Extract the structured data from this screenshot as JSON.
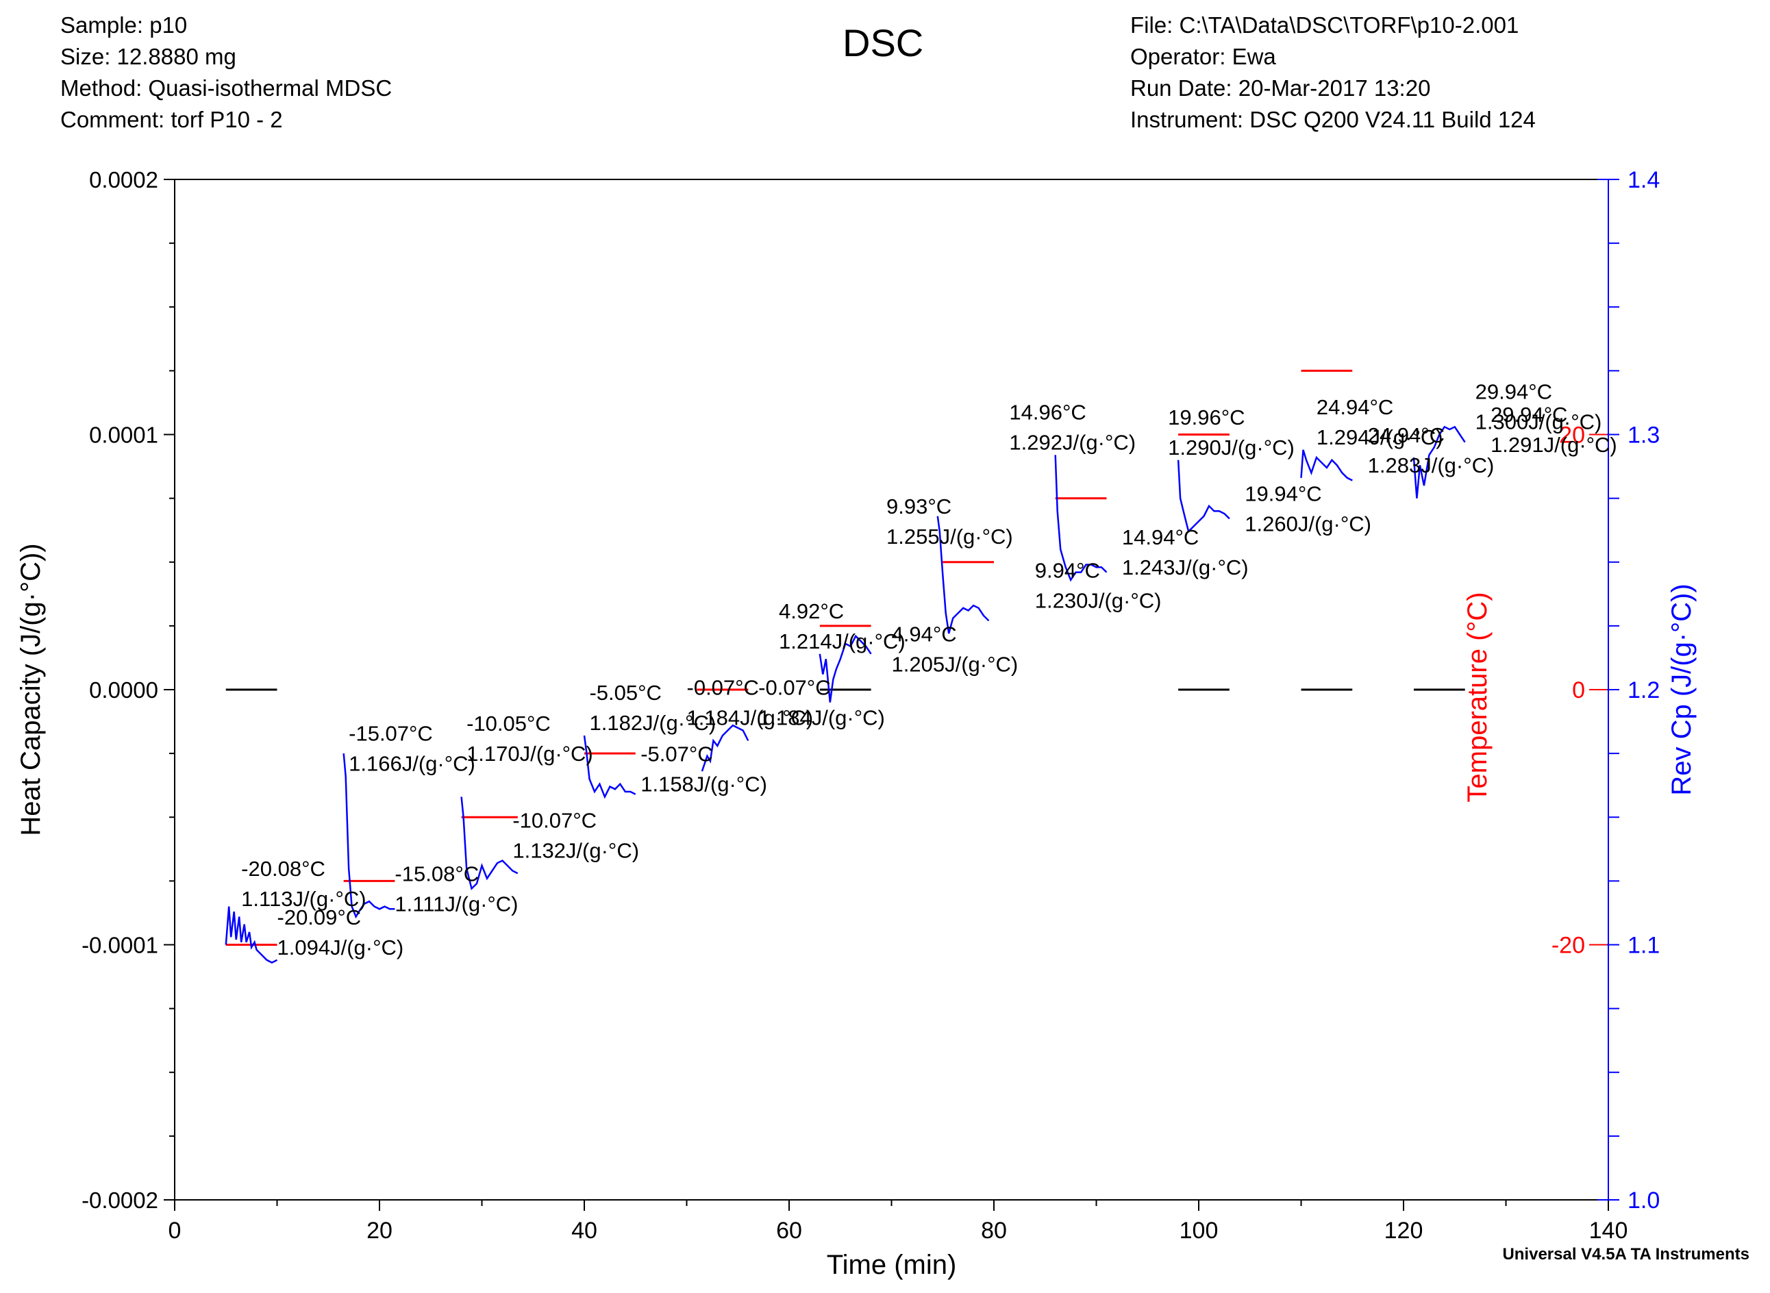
{
  "header": {
    "left": [
      "Sample: p10",
      "Size:  12.8880 mg",
      "Method: Quasi-isothermal MDSC",
      "Comment: torf P10 - 2"
    ],
    "title": "DSC",
    "right": [
      "File: C:\\TA\\Data\\DSC\\TORF\\p10-2.001",
      "Operator: Ewa",
      "Run Date: 20-Mar-2017 13:20",
      "Instrument: DSC Q200 V24.11 Build 124"
    ]
  },
  "footer": "Universal V4.5A TA Instruments",
  "colors": {
    "hc": "#000000",
    "temp": "#ff0000",
    "revcp": "#0000ff"
  },
  "chart_data": {
    "type": "line",
    "title": "DSC",
    "xlabel": "Time (min)",
    "xlim": [
      0,
      140
    ],
    "xticks": [
      0,
      20,
      40,
      60,
      80,
      100,
      120,
      140
    ],
    "x_minor_step": 10,
    "y_left": {
      "label": "Heat Capacity (J/(g·°C))",
      "lim": [
        -0.0002,
        0.0002
      ],
      "ticks": [
        -0.0002,
        -0.0001,
        0.0,
        0.0001,
        0.0002
      ],
      "tick_labels": [
        "-0.0002",
        "-0.0001",
        "0.0000",
        "0.0001",
        "0.0002"
      ],
      "minor_step": 2.5e-05
    },
    "y_temp": {
      "label": "Temperature (°C)",
      "lim": [
        -40,
        40
      ],
      "ticks": [
        -20,
        0,
        20
      ],
      "tick_labels": [
        "-20",
        "0",
        "20"
      ]
    },
    "y_revcp": {
      "label": "Rev Cp (J/(g·°C))",
      "lim": [
        1.0,
        1.4
      ],
      "ticks": [
        1.0,
        1.1,
        1.2,
        1.3,
        1.4
      ],
      "tick_labels": [
        "1.0",
        "1.1",
        "1.2",
        "1.3",
        "1.4"
      ],
      "minor_step": 0.025
    },
    "series": [
      {
        "name": "Heat Capacity",
        "axis": "left",
        "segments": [
          [
            5,
            10,
            0
          ],
          [
            51,
            56,
            0
          ],
          [
            63,
            68,
            0
          ],
          [
            98,
            103,
            0
          ],
          [
            110,
            115,
            0
          ],
          [
            121,
            126,
            0
          ]
        ]
      },
      {
        "name": "Temperature",
        "axis": "temp",
        "segments": [
          [
            5,
            10,
            -20
          ],
          [
            16.5,
            21.5,
            -15
          ],
          [
            28,
            33.5,
            -10
          ],
          [
            40,
            45,
            -5
          ],
          [
            51,
            56,
            0
          ],
          [
            63,
            68,
            5
          ],
          [
            75,
            80,
            10
          ],
          [
            86,
            91,
            15
          ],
          [
            98,
            103,
            20
          ],
          [
            110,
            115,
            25
          ]
        ]
      },
      {
        "name": "Rev Cp",
        "axis": "revcp",
        "curves": [
          {
            "t": [
              5.0,
              5.3,
              5.5,
              5.8,
              6.0,
              6.3,
              6.5,
              6.8,
              7.0,
              7.3,
              7.5,
              7.8,
              8.0,
              8.5,
              9.0,
              9.5,
              10.0
            ],
            "y": [
              1.1,
              1.115,
              1.103,
              1.113,
              1.102,
              1.111,
              1.101,
              1.108,
              1.101,
              1.105,
              1.099,
              1.101,
              1.098,
              1.096,
              1.094,
              1.093,
              1.094
            ]
          },
          {
            "t": [
              16.5,
              16.7,
              17.0,
              17.3,
              17.7,
              18.0,
              18.5,
              19.0,
              19.5,
              20.0,
              20.5,
              21.0,
              21.5
            ],
            "y": [
              1.175,
              1.166,
              1.13,
              1.115,
              1.111,
              1.113,
              1.116,
              1.117,
              1.115,
              1.114,
              1.115,
              1.114,
              1.114
            ]
          },
          {
            "t": [
              28.0,
              28.2,
              28.5,
              29.0,
              29.5,
              30.0,
              30.5,
              31.0,
              31.5,
              32.0,
              32.5,
              33.0,
              33.5
            ],
            "y": [
              1.158,
              1.15,
              1.13,
              1.122,
              1.124,
              1.131,
              1.126,
              1.129,
              1.132,
              1.133,
              1.131,
              1.129,
              1.128
            ]
          },
          {
            "t": [
              40.0,
              40.2,
              40.5,
              41.0,
              41.5,
              42.0,
              42.5,
              43.0,
              43.5,
              44.0,
              44.5,
              45.0
            ],
            "y": [
              1.182,
              1.176,
              1.165,
              1.16,
              1.163,
              1.158,
              1.162,
              1.161,
              1.163,
              1.16,
              1.16,
              1.159
            ]
          },
          {
            "t": [
              51.5,
              52.0,
              52.3,
              52.6,
              53.0,
              53.5,
              54.0,
              54.5,
              55.0,
              55.5,
              56.0
            ],
            "y": [
              1.168,
              1.174,
              1.172,
              1.18,
              1.178,
              1.182,
              1.184,
              1.186,
              1.185,
              1.184,
              1.18
            ]
          },
          {
            "t": [
              63.0,
              63.3,
              63.6,
              64.0,
              64.3,
              64.6,
              65.0,
              65.5,
              66.0,
              66.5,
              67.0,
              67.5,
              68.0
            ],
            "y": [
              1.214,
              1.206,
              1.212,
              1.195,
              1.204,
              1.208,
              1.212,
              1.218,
              1.217,
              1.221,
              1.219,
              1.217,
              1.214
            ]
          },
          {
            "t": [
              74.5,
              74.7,
              75.0,
              75.3,
              75.6,
              76.0,
              76.5,
              77.0,
              77.5,
              78.0,
              78.5,
              79.0,
              79.5
            ],
            "y": [
              1.268,
              1.262,
              1.245,
              1.23,
              1.222,
              1.228,
              1.23,
              1.232,
              1.231,
              1.233,
              1.232,
              1.229,
              1.227
            ]
          },
          {
            "t": [
              86.0,
              86.2,
              86.5,
              87.0,
              87.5,
              88.0,
              88.5,
              89.0,
              89.5,
              90.0,
              90.5,
              91.0
            ],
            "y": [
              1.292,
              1.27,
              1.255,
              1.248,
              1.243,
              1.246,
              1.246,
              1.249,
              1.249,
              1.248,
              1.248,
              1.246
            ]
          },
          {
            "t": [
              98.0,
              98.2,
              98.5,
              99.0,
              99.5,
              100.0,
              100.5,
              101.0,
              101.5,
              102.0,
              102.5,
              103.0
            ],
            "y": [
              1.29,
              1.275,
              1.27,
              1.262,
              1.264,
              1.266,
              1.268,
              1.272,
              1.27,
              1.27,
              1.269,
              1.267
            ]
          },
          {
            "t": [
              110.0,
              110.2,
              110.5,
              111.0,
              111.5,
              112.0,
              112.5,
              113.0,
              113.5,
              114.0,
              114.5,
              115.0
            ],
            "y": [
              1.283,
              1.294,
              1.29,
              1.285,
              1.291,
              1.289,
              1.287,
              1.29,
              1.288,
              1.285,
              1.283,
              1.282
            ]
          },
          {
            "t": [
              121.0,
              121.3,
              121.6,
              122.0,
              122.5,
              123.0,
              123.5,
              124.0,
              124.5,
              125.0,
              125.5,
              126.0
            ],
            "y": [
              1.291,
              1.275,
              1.288,
              1.28,
              1.292,
              1.295,
              1.3,
              1.303,
              1.302,
              1.303,
              1.3,
              1.297
            ]
          }
        ]
      }
    ],
    "annotations": [
      {
        "t": 6.5,
        "temp": "-20.08°C",
        "cp": "1.113J/(g·°C)"
      },
      {
        "t": 10.0,
        "temp": "-20.09°C",
        "cp": "1.094J/(g·°C)"
      },
      {
        "t": 17.0,
        "temp": "-15.07°C",
        "cp": "1.166J/(g·°C)"
      },
      {
        "t": 21.5,
        "temp": "-15.08°C",
        "cp": "1.111J/(g·°C)"
      },
      {
        "t": 28.5,
        "temp": "-10.05°C",
        "cp": "1.170J/(g·°C)"
      },
      {
        "t": 33.0,
        "temp": "-10.07°C",
        "cp": "1.132J/(g·°C)"
      },
      {
        "t": 40.5,
        "temp": "-5.05°C",
        "cp": "1.182J/(g·°C)"
      },
      {
        "t": 45.5,
        "temp": "-5.07°C",
        "cp": "1.158J/(g·°C)"
      },
      {
        "t": 50.0,
        "temp": "-0.07°C",
        "cp": "1.184J/(g·°C)"
      },
      {
        "t": 57.0,
        "temp": "-0.07°C",
        "cp": "1.184J/(g·°C)"
      },
      {
        "t": 59.0,
        "temp": "4.92°C",
        "cp": "1.214J/(g·°C)"
      },
      {
        "t": 70.0,
        "temp": "4.94°C",
        "cp": "1.205J/(g·°C)"
      },
      {
        "t": 69.5,
        "temp": "9.93°C",
        "cp": "1.255J/(g·°C)"
      },
      {
        "t": 84.0,
        "temp": "9.94°C",
        "cp": "1.230J/(g·°C)"
      },
      {
        "t": 81.5,
        "temp": "14.96°C",
        "cp": "1.292J/(g·°C)"
      },
      {
        "t": 92.5,
        "temp": "14.94°C",
        "cp": "1.243J/(g·°C)"
      },
      {
        "t": 97.0,
        "temp": "19.96°C",
        "cp": "1.290J/(g·°C)"
      },
      {
        "t": 104.5,
        "temp": "19.94°C",
        "cp": "1.260J/(g·°C)"
      },
      {
        "t": 111.5,
        "temp": "24.94°C",
        "cp": "1.294J/(g·°C)"
      },
      {
        "t": 116.5,
        "temp": "24.94°C",
        "cp": "1.283J/(g·°C)"
      },
      {
        "t": 127.0,
        "temp": "29.94°C",
        "cp": "1.300J/(g·°C)"
      },
      {
        "t": 128.5,
        "temp": "29.94°C",
        "cp": "1.291J/(g·°C)"
      }
    ]
  }
}
